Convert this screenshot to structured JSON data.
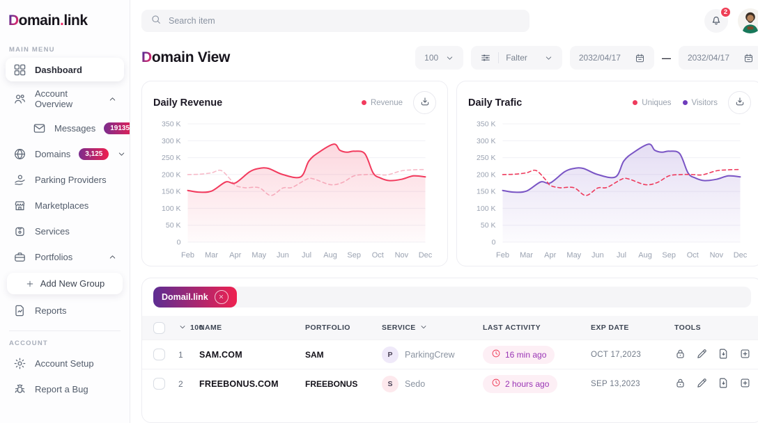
{
  "brand": {
    "logo_d": "D",
    "logo_main": "omain",
    "logo_dot": ".",
    "logo_suffix": "link"
  },
  "colors": {
    "accent_purple": "#5d2d92",
    "accent_pink": "#ee2150",
    "notification_red": "#ef3e55",
    "badge_gradient": [
      "#7b2d8e",
      "#ef1f4e"
    ],
    "revenue_line": "#f23a5d",
    "revenue_dashed": "#f7bac8",
    "visitors_line": "#7a55c5",
    "uniques_dashed": "#ee3a5c"
  },
  "sidebar": {
    "sections": [
      {
        "label": "MAIN MENU",
        "items": [
          {
            "id": "dashboard",
            "label": "Dashboard",
            "icon": "grid-icon",
            "active": true
          },
          {
            "id": "account-overview",
            "label": "Account Overview",
            "icon": "users-icon",
            "chevron": "up"
          },
          {
            "id": "messages",
            "label": "Messages",
            "icon": "mail-icon",
            "badge": "19135",
            "indent": true
          },
          {
            "id": "domains",
            "label": "Domains",
            "icon": "globe-icon",
            "badge": "3,125",
            "chevron": "down"
          },
          {
            "id": "parking-providers",
            "label": "Parking Providers",
            "icon": "hand-coin-icon"
          },
          {
            "id": "marketplaces",
            "label": "Marketplaces",
            "icon": "storefront-icon"
          },
          {
            "id": "services",
            "label": "Services",
            "icon": "tag-icon"
          },
          {
            "id": "portfolios",
            "label": "Portfolios",
            "icon": "briefcase-icon",
            "chevron": "up"
          },
          {
            "id": "add-new-group",
            "label": "Add New Group",
            "icon": "plus-icon",
            "card": true
          },
          {
            "id": "reports",
            "label": "Reports",
            "icon": "report-icon"
          }
        ]
      },
      {
        "label": "ACCOUNT",
        "items": [
          {
            "id": "account-setup",
            "label": "Account Setup",
            "icon": "gear-icon"
          },
          {
            "id": "report-a-bug",
            "label": "Report a Bug",
            "icon": "bug-icon"
          }
        ]
      }
    ]
  },
  "topbar": {
    "search_placeholder": "Search item",
    "notification_count": "2"
  },
  "page": {
    "title_d": "D",
    "title_rest": "omain View"
  },
  "controls": {
    "page_size": "100",
    "filter_label": "Falter",
    "date_from": "2032/04/17",
    "date_separator": "—",
    "date_to": "2032/04/17"
  },
  "charts": [
    {
      "id": "revenue",
      "title": "Daily Revenue",
      "type": "line",
      "legend": [
        {
          "label": "Revenue",
          "color": "#f23a5d"
        }
      ],
      "y_ticks": [
        {
          "value": 350,
          "label": "350 K"
        },
        {
          "value": 300,
          "label": "300 K"
        },
        {
          "value": 250,
          "label": "250 K"
        },
        {
          "value": 200,
          "label": "200 K"
        },
        {
          "value": 150,
          "label": "150 K"
        },
        {
          "value": 100,
          "label": "100 K"
        },
        {
          "value": 50,
          "label": "50 K"
        },
        {
          "value": 0,
          "label": "0"
        }
      ],
      "x_labels": [
        "Feb",
        "Mar",
        "Apr",
        "May",
        "Jun",
        "Jul",
        "Aug",
        "Sep",
        "Oct",
        "Nov",
        "Dec"
      ],
      "ylim": [
        0,
        350
      ],
      "unit": "K",
      "series": [
        {
          "name": "Revenue (dashed)",
          "color": "#f7bac8",
          "dashed": true,
          "points": [
            [
              0,
              200
            ],
            [
              0.5,
              201
            ],
            [
              1,
              205
            ],
            [
              1.4,
              212
            ],
            [
              1.8,
              185
            ],
            [
              2,
              168
            ],
            [
              2.4,
              161
            ],
            [
              3,
              161
            ],
            [
              3.5,
              138
            ],
            [
              4,
              160
            ],
            [
              4.4,
              162
            ],
            [
              5,
              186
            ],
            [
              5.3,
              187
            ],
            [
              6,
              170
            ],
            [
              6.5,
              176
            ],
            [
              7,
              196
            ],
            [
              7.5,
              200
            ],
            [
              8,
              200
            ],
            [
              8.4,
              199
            ],
            [
              9,
              211
            ],
            [
              9.5,
              214
            ],
            [
              10,
              215
            ]
          ]
        },
        {
          "name": "Revenue",
          "color": "#f23a5d",
          "fill": true,
          "points": [
            [
              0,
              153
            ],
            [
              0.45,
              148
            ],
            [
              1,
              151
            ],
            [
              1.6,
              178
            ],
            [
              2,
              175
            ],
            [
              2.6,
              208
            ],
            [
              3,
              218
            ],
            [
              3.4,
              218
            ],
            [
              4,
              200
            ],
            [
              4.75,
              193
            ],
            [
              5.1,
              240
            ],
            [
              5.5,
              265
            ],
            [
              6.15,
              290
            ],
            [
              6.4,
              272
            ],
            [
              6.7,
              266
            ],
            [
              7,
              269
            ],
            [
              7.45,
              262
            ],
            [
              7.8,
              205
            ],
            [
              8.1,
              190
            ],
            [
              8.5,
              182
            ],
            [
              9,
              186
            ],
            [
              9.5,
              196
            ],
            [
              10,
              193
            ]
          ]
        }
      ]
    },
    {
      "id": "traffic",
      "title": "Daily Trafic",
      "type": "line",
      "legend": [
        {
          "label": "Uniques",
          "color": "#ee3a5c"
        },
        {
          "label": "Visitors",
          "color": "#6e3cbc"
        }
      ],
      "y_ticks": [
        {
          "value": 350,
          "label": "350 K"
        },
        {
          "value": 300,
          "label": "300 K"
        },
        {
          "value": 250,
          "label": "250 K"
        },
        {
          "value": 200,
          "label": "200 K"
        },
        {
          "value": 150,
          "label": "150 K"
        },
        {
          "value": 100,
          "label": "100 K"
        },
        {
          "value": 50,
          "label": "50 K"
        },
        {
          "value": 0,
          "label": "0"
        }
      ],
      "x_labels": [
        "Feb",
        "Mar",
        "Apr",
        "May",
        "Jun",
        "Jul",
        "Aug",
        "Sep",
        "Oct",
        "Nov",
        "Dec"
      ],
      "ylim": [
        0,
        350
      ],
      "unit": "K",
      "series": [
        {
          "name": "Visitors",
          "color": "#7a55c5",
          "fill": true,
          "points": [
            [
              0,
              153
            ],
            [
              0.45,
              148
            ],
            [
              1,
              151
            ],
            [
              1.6,
              178
            ],
            [
              2,
              175
            ],
            [
              2.6,
              208
            ],
            [
              3,
              218
            ],
            [
              3.4,
              218
            ],
            [
              4,
              200
            ],
            [
              4.75,
              193
            ],
            [
              5.1,
              240
            ],
            [
              5.5,
              265
            ],
            [
              6.15,
              290
            ],
            [
              6.4,
              272
            ],
            [
              6.7,
              266
            ],
            [
              7,
              269
            ],
            [
              7.45,
              262
            ],
            [
              7.8,
              205
            ],
            [
              8.1,
              190
            ],
            [
              8.5,
              182
            ],
            [
              9,
              186
            ],
            [
              9.5,
              196
            ],
            [
              10,
              193
            ]
          ]
        },
        {
          "name": "Uniques",
          "color": "#ee3a5c",
          "dashed": true,
          "points": [
            [
              0,
              200
            ],
            [
              0.5,
              201
            ],
            [
              1,
              205
            ],
            [
              1.4,
              212
            ],
            [
              1.8,
              185
            ],
            [
              2,
              168
            ],
            [
              2.4,
              161
            ],
            [
              3,
              161
            ],
            [
              3.5,
              138
            ],
            [
              4,
              160
            ],
            [
              4.4,
              162
            ],
            [
              5,
              186
            ],
            [
              5.3,
              187
            ],
            [
              6,
              170
            ],
            [
              6.5,
              176
            ],
            [
              7,
              196
            ],
            [
              7.5,
              200
            ],
            [
              8,
              200
            ],
            [
              8.4,
              199
            ],
            [
              9,
              211
            ],
            [
              9.5,
              214
            ],
            [
              10,
              215
            ]
          ]
        }
      ]
    }
  ],
  "table": {
    "filter_chip": {
      "label": "Domail.link"
    },
    "select_count": "100",
    "columns": [
      {
        "label": "NAME"
      },
      {
        "label": "PORTFOLIO"
      },
      {
        "label": "SERVICE",
        "chevron": true
      },
      {
        "label": "LAST ACTIVITY"
      },
      {
        "label": "EXP DATE"
      },
      {
        "label": "TOOLS"
      }
    ],
    "activity_pill": {
      "bg": "#fdeff5",
      "text": "#9a35b5",
      "icon_color": "#ef3a55"
    },
    "rows": [
      {
        "num": "1",
        "name": "SAM.COM",
        "portfolio": "SAM",
        "service_initial": "P",
        "service_name": "ParkingCrew",
        "service_bg": "#efe9f9",
        "last_activity": "16 min ago",
        "exp_date": "OCT 17,2023"
      },
      {
        "num": "2",
        "name": "FREEBONUS.COM",
        "portfolio": "FREEBONUS",
        "service_initial": "S",
        "service_name": "Sedo",
        "service_bg": "#fde9ed",
        "last_activity": "2 hours ago",
        "exp_date": "SEP 13,2023"
      }
    ],
    "tools": [
      "lock-icon",
      "pencil-icon",
      "file-download-icon",
      "square-plus-icon"
    ]
  }
}
